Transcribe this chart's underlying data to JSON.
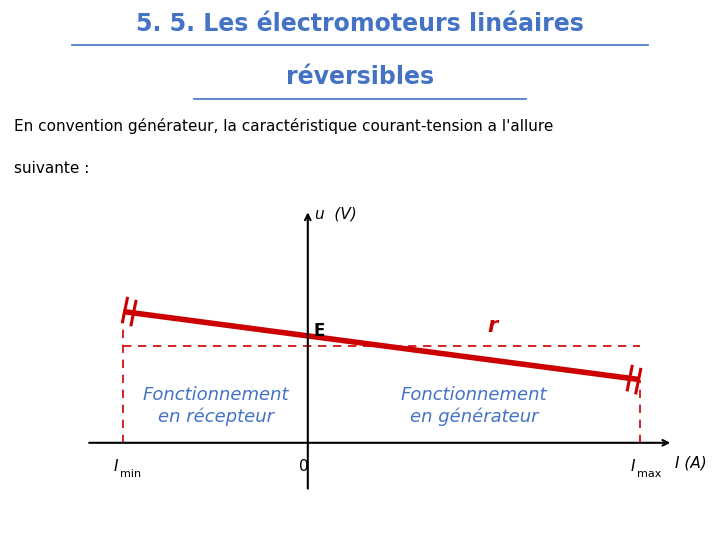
{
  "title_line1": "5. 5. Les électromoteurs linéaires",
  "title_line2": "réversibles",
  "title_color": "#4472C4",
  "subtitle_line1": "En convention générateur, la caractéristique courant-tension a l'allure",
  "subtitle_line2": "suivante :",
  "line_color": "#CC0000",
  "dashed_color": "#CC0000",
  "text_color_blue": "#4472C4",
  "label_E": "E",
  "label_r": "r",
  "label_u": "u  (V)",
  "label_I": "I (A)",
  "label_Imin": "I",
  "label_Imin_sub": "min",
  "label_Imax": "I",
  "label_Imax_sub": "max",
  "label_0": "0",
  "label_fonc_recepteur": "Fonctionnement\nen récepteur",
  "label_fonc_generateur": "Fonctionnement\nen générateur",
  "bg_color": "#FFFFFF",
  "x_min": -3,
  "x_max": 5,
  "y_min": -0.5,
  "y_max": 2.5,
  "E_level": 1.0,
  "line_x_start": -2.5,
  "line_x_end": 4.5,
  "line_y_start": 1.35,
  "line_y_end": 0.65,
  "Imin_x": -2.5,
  "Imax_x": 4.5,
  "origin_x": 0,
  "dashed_y": 1.0
}
